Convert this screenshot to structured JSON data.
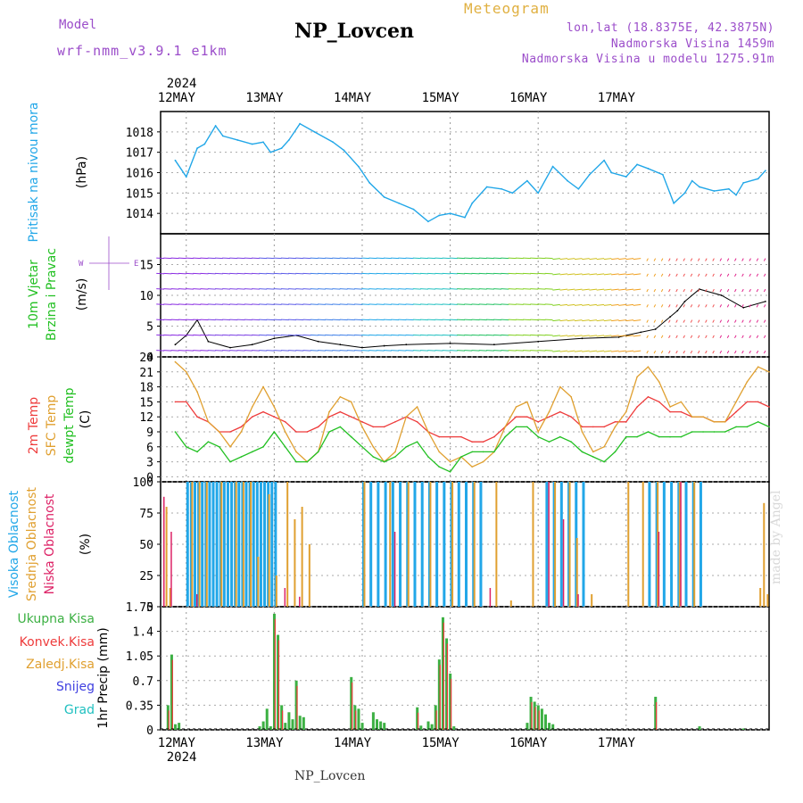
{
  "header": {
    "title": "NP_Lovcen",
    "meteogram": "Meteogram",
    "model_label": "Model",
    "model_name": "wrf-nmm_v3.9.1 e1km",
    "lonlat": "lon,lat (18.8375E, 42.3875N)",
    "elevation": "Nadmorska Visina 1459m",
    "model_elevation": "Nadmorska Visina u modelu 1275.91m",
    "footer": "NP_Lovcen",
    "credit": "made by Angel"
  },
  "days": [
    "12MAY",
    "13MAY",
    "14MAY",
    "15MAY",
    "16MAY",
    "17MAY"
  ],
  "year": "2024",
  "colors": {
    "pressure": "#22a7e8",
    "t2m": "#ee3b3b",
    "tsfc": "#e0a030",
    "dew": "#22c022",
    "cloud_high": "#22a7e8",
    "cloud_mid": "#e0a030",
    "cloud_low": "#dd2266",
    "precip": "#3cb043",
    "conv": "#ee3b3b",
    "wind_speed": "#000000"
  },
  "chart_data": [
    {
      "type": "line",
      "panel": "pressure",
      "ylabel": "Pritisak na nivou mora",
      "unit": "(hPa)",
      "ylim": [
        1013,
        1019
      ],
      "yticks": [
        1014,
        1015,
        1016,
        1017,
        1018
      ],
      "x_hours_from_12may00": [
        -3,
        0,
        3,
        5,
        8,
        10,
        14,
        18,
        21,
        23,
        26,
        28,
        31,
        35,
        40,
        43,
        47,
        50,
        54,
        58,
        62,
        66,
        69,
        72,
        76,
        78,
        82,
        86,
        89,
        93,
        96,
        100,
        104,
        107,
        110,
        114,
        116,
        120,
        123,
        126,
        130,
        133,
        136,
        138,
        140,
        144,
        148,
        150,
        152,
        156,
        158
      ],
      "values": [
        1016.6,
        1015.8,
        1017.2,
        1017.4,
        1018.3,
        1017.8,
        1017.6,
        1017.4,
        1017.5,
        1017.0,
        1017.2,
        1017.6,
        1018.4,
        1018.0,
        1017.5,
        1017.1,
        1016.3,
        1015.5,
        1014.8,
        1014.5,
        1014.2,
        1013.6,
        1013.9,
        1014.0,
        1013.8,
        1014.5,
        1015.3,
        1015.2,
        1015.0,
        1015.6,
        1015.0,
        1016.3,
        1015.6,
        1015.2,
        1015.9,
        1016.6,
        1016.0,
        1015.8,
        1016.4,
        1016.2,
        1015.9,
        1014.5,
        1015.0,
        1015.6,
        1015.3,
        1015.1,
        1015.2,
        1014.9,
        1015.5,
        1015.7,
        1016.1
      ]
    },
    {
      "type": "barbs",
      "panel": "wind",
      "ylabel": "10m Vjetar Brzina i Pravac",
      "unit": "(m/s)",
      "ylim": [
        0,
        20
      ],
      "yticks": [
        0,
        5,
        10,
        15
      ],
      "series": [
        {
          "name": "Brzina",
          "x_hours_from_12may00": [
            -3,
            0,
            3,
            6,
            12,
            18,
            24,
            30,
            36,
            42,
            48,
            54,
            60,
            72,
            84,
            96,
            108,
            118,
            120,
            124,
            128,
            132,
            134,
            136,
            140,
            146,
            152,
            158
          ],
          "values": [
            2.0,
            3.5,
            6.0,
            2.5,
            1.5,
            2.0,
            3.0,
            3.5,
            2.5,
            2.0,
            1.5,
            1.8,
            2.0,
            2.2,
            2.0,
            2.5,
            3.0,
            3.2,
            3.5,
            4.0,
            4.5,
            6.5,
            7.5,
            9.0,
            11.0,
            10.0,
            8.0,
            9.0
          ]
        }
      ]
    },
    {
      "type": "line",
      "panel": "temperature",
      "ylabel": "2m Temp, SFC Temp, dewpt Temp",
      "unit": "(C)",
      "ylim": [
        -1,
        24
      ],
      "yticks": [
        0,
        3,
        6,
        9,
        12,
        15,
        18,
        21,
        24
      ],
      "x_hours_from_12may00": [
        -3,
        0,
        3,
        6,
        9,
        12,
        15,
        18,
        21,
        24,
        27,
        30,
        33,
        36,
        39,
        42,
        45,
        48,
        51,
        54,
        57,
        60,
        63,
        66,
        69,
        72,
        75,
        78,
        81,
        84,
        87,
        90,
        93,
        96,
        99,
        102,
        105,
        108,
        111,
        114,
        117,
        120,
        123,
        126,
        129,
        132,
        135,
        138,
        141,
        144,
        147,
        150,
        153,
        156,
        159
      ],
      "series": [
        {
          "name": "2m Temp",
          "values": [
            15,
            15,
            12,
            11,
            9,
            9,
            10,
            12,
            13,
            12,
            11,
            9,
            9,
            10,
            12,
            13,
            12,
            11,
            10,
            10,
            11,
            12,
            11,
            9,
            8,
            8,
            8,
            7,
            7,
            8,
            10,
            12,
            12,
            11,
            12,
            13,
            12,
            10,
            10,
            10,
            11,
            11,
            14,
            16,
            15,
            13,
            13,
            12,
            12,
            11,
            11,
            13,
            15,
            15,
            14
          ]
        },
        {
          "name": "SFC Temp",
          "values": [
            23,
            21,
            17,
            11,
            9,
            6,
            9,
            14,
            18,
            14,
            9,
            5,
            3,
            5,
            13,
            16,
            15,
            10,
            6,
            3,
            5,
            12,
            14,
            9,
            5,
            3,
            4,
            2,
            3,
            5,
            10,
            14,
            15,
            9,
            13,
            18,
            16,
            9,
            5,
            6,
            10,
            13,
            20,
            22,
            19,
            14,
            15,
            12,
            12,
            11,
            11,
            15,
            19,
            22,
            21
          ]
        },
        {
          "name": "dewpt Temp",
          "values": [
            9,
            6,
            5,
            7,
            6,
            3,
            4,
            5,
            6,
            9,
            6,
            3,
            3,
            5,
            9,
            10,
            8,
            6,
            4,
            3,
            4,
            6,
            7,
            4,
            2,
            1,
            4,
            5,
            5,
            5,
            8,
            10,
            10,
            8,
            7,
            8,
            7,
            5,
            4,
            3,
            5,
            8,
            8,
            9,
            8,
            8,
            8,
            9,
            9,
            9,
            9,
            10,
            10,
            11,
            10
          ]
        }
      ]
    },
    {
      "type": "bar",
      "panel": "clouds",
      "ylabel": "Visoka Oblacnost, Srednja Oblacnost, Niska Oblacnost",
      "unit": "(%)",
      "ylim": [
        0,
        100
      ],
      "yticks": [
        0,
        25,
        50,
        75,
        100
      ],
      "series": [
        {
          "name": "Visoka Oblacnost",
          "x_hours_from_12may00": [
            0,
            1,
            2,
            3,
            4,
            5,
            6,
            7,
            8,
            9,
            10,
            11,
            12,
            13,
            14,
            15,
            16,
            17,
            18,
            19,
            20,
            21,
            22,
            23,
            24,
            48,
            50,
            52,
            54,
            56,
            58,
            60,
            62,
            64,
            66,
            68,
            70,
            72,
            74,
            76,
            78,
            80,
            98,
            100,
            102,
            104,
            106,
            108,
            126,
            128,
            130,
            132,
            134,
            136,
            138,
            140
          ],
          "values": [
            100,
            100,
            100,
            100,
            100,
            100,
            100,
            100,
            100,
            100,
            100,
            100,
            100,
            100,
            100,
            100,
            100,
            100,
            100,
            100,
            100,
            100,
            100,
            100,
            100,
            100,
            100,
            100,
            100,
            100,
            100,
            100,
            100,
            100,
            100,
            100,
            100,
            100,
            100,
            100,
            100,
            100,
            100,
            100,
            100,
            100,
            100,
            100,
            100,
            100,
            100,
            100,
            100,
            100,
            100,
            100
          ]
        },
        {
          "name": "Srednja Oblacnost",
          "x_hours_from_12may00": [
            -6,
            -5,
            1,
            3,
            5,
            9,
            13,
            15,
            17,
            19,
            22,
            24,
            27,
            29,
            31,
            33,
            48,
            55,
            60,
            66,
            72,
            78,
            84,
            88,
            94,
            100,
            104,
            106,
            110,
            120,
            124,
            128,
            134,
            138,
            156,
            157,
            158
          ],
          "values": [
            80,
            15,
            100,
            100,
            100,
            100,
            100,
            100,
            100,
            40,
            90,
            25,
            100,
            70,
            80,
            50,
            100,
            100,
            100,
            100,
            100,
            100,
            100,
            5,
            100,
            100,
            100,
            55,
            10,
            100,
            100,
            100,
            100,
            100,
            15,
            83,
            10
          ]
        },
        {
          "name": "Niska Oblacnost",
          "x_hours_from_12may00": [
            -7,
            -5,
            2,
            26,
            30,
            56,
            82,
            98,
            102,
            106,
            128,
            134
          ],
          "values": [
            88,
            60,
            10,
            15,
            8,
            60,
            15,
            100,
            70,
            10,
            60,
            100
          ]
        }
      ]
    },
    {
      "type": "bar",
      "panel": "precipitation",
      "ylabel": "1hr Precip (mm)",
      "legend": [
        "Ukupna Kisa",
        "Konvek.Kisa",
        "Zaledj.Kisa",
        "Snijeg",
        "Grad"
      ],
      "ylim": [
        0,
        1.75
      ],
      "yticks": [
        0,
        0.35,
        0.7,
        1.05,
        1.4,
        1.75
      ],
      "series": [
        {
          "name": "Ukupna Kisa",
          "x_hours_from_12may00": [
            -5,
            -4,
            -3,
            -2,
            20,
            21,
            22,
            23,
            24,
            25,
            26,
            27,
            28,
            29,
            30,
            31,
            32,
            45,
            46,
            47,
            48,
            51,
            52,
            53,
            54,
            63,
            64,
            66,
            67,
            68,
            69,
            70,
            71,
            72,
            73,
            93,
            94,
            95,
            96,
            97,
            98,
            99,
            100,
            128,
            140,
            152
          ],
          "values": [
            0.35,
            1.07,
            0.08,
            0.1,
            0.05,
            0.12,
            0.3,
            0.05,
            1.65,
            1.35,
            0.35,
            0.1,
            0.25,
            0.15,
            0.7,
            0.2,
            0.18,
            0.75,
            0.35,
            0.3,
            0.1,
            0.25,
            0.15,
            0.12,
            0.1,
            0.32,
            0.06,
            0.12,
            0.08,
            0.35,
            1.0,
            1.6,
            1.3,
            0.8,
            0.05,
            0.1,
            0.47,
            0.4,
            0.35,
            0.3,
            0.22,
            0.1,
            0.08,
            0.47,
            0.05,
            0.02
          ]
        }
      ]
    }
  ]
}
